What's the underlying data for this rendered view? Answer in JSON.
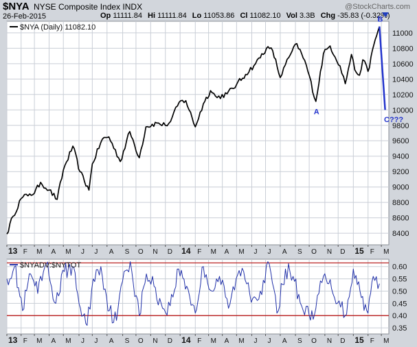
{
  "header": {
    "symbol": "$NYA",
    "name": "NYSE Composite Index",
    "exchange": "INDX",
    "watermark": "@StockCharts.com",
    "date": "26-Feb-2015",
    "op_label": "Op",
    "op": "11111.84",
    "hi_label": "Hi",
    "hi": "11111.84",
    "lo_label": "Lo",
    "lo": "11053.86",
    "cl_label": "Cl",
    "cl": "11082.10",
    "vol_label": "Vol",
    "vol": "3.3B",
    "chg_label": "Chg",
    "chg": "-35.83 (-0.32%)"
  },
  "colors": {
    "price_line": "#000000",
    "breadth_line": "#1f2fa8",
    "annotation": "#2233cc",
    "ref_line": "#b81c1c",
    "grid": "#c9ced6",
    "panel_bg": "#ffffff",
    "page_bg": "#d2d6dc"
  },
  "chart_data": [
    {
      "type": "line",
      "legend": "$NYA (Daily) 11082.10",
      "x": [
        "2013-01-02",
        "2013-01-15",
        "2013-02-01",
        "2013-02-19",
        "2013-03-01",
        "2013-03-14",
        "2013-04-01",
        "2013-04-18",
        "2013-05-01",
        "2013-05-21",
        "2013-06-05",
        "2013-06-24",
        "2013-07-01",
        "2013-07-22",
        "2013-08-05",
        "2013-08-29",
        "2013-09-18",
        "2013-10-08",
        "2013-10-22",
        "2013-11-14",
        "2013-12-02",
        "2013-12-13",
        "2013-12-31",
        "2014-01-14",
        "2014-02-03",
        "2014-02-20",
        "2014-03-07",
        "2014-03-21",
        "2014-04-11",
        "2014-05-01",
        "2014-05-20",
        "2014-06-10",
        "2014-07-03",
        "2014-07-16",
        "2014-08-01",
        "2014-08-19",
        "2014-09-05",
        "2014-09-25",
        "2014-10-15",
        "2014-10-31",
        "2014-11-14",
        "2014-12-05",
        "2014-12-16",
        "2014-12-29",
        "2015-01-05",
        "2015-01-15",
        "2015-01-22",
        "2015-02-02",
        "2015-02-17",
        "2015-02-26"
      ],
      "y": [
        8390,
        8620,
        8850,
        8910,
        8920,
        9060,
        8960,
        8840,
        9220,
        9530,
        9200,
        8960,
        9300,
        9620,
        9650,
        9330,
        9720,
        9380,
        9780,
        9830,
        9800,
        9850,
        10100,
        10120,
        9780,
        10080,
        10250,
        10160,
        10210,
        10330,
        10460,
        10600,
        10800,
        10770,
        10420,
        10680,
        10860,
        10580,
        10110,
        10730,
        10830,
        10570,
        10340,
        10720,
        10520,
        10450,
        10650,
        10500,
        10910,
        11082
      ],
      "projection": {
        "x": [
          "2015-02-26",
          "2015-03-10"
        ],
        "y": [
          11082,
          10000
        ]
      },
      "annotations": [
        {
          "text": "A",
          "x": "2014-10-15",
          "y": 9980
        },
        {
          "text": "B",
          "x": "2015-02-26",
          "y": 11180
        },
        {
          "text": "C???",
          "x": "2015-03-12",
          "y": 9880
        }
      ],
      "ylim": [
        8250,
        11150
      ],
      "yticks": [
        8400,
        8600,
        8800,
        9000,
        9200,
        9400,
        9600,
        9800,
        10000,
        10200,
        10400,
        10600,
        10800,
        11000
      ],
      "xtick_labels": [
        "13",
        "F",
        "M",
        "A",
        "M",
        "J",
        "J",
        "A",
        "S",
        "O",
        "N",
        "D",
        "14",
        "F",
        "M",
        "A",
        "M",
        "J",
        "J",
        "A",
        "S",
        "O",
        "N",
        "D",
        "15",
        "F",
        "M"
      ]
    },
    {
      "type": "line",
      "legend": "$NYADV:$NYTOT",
      "x": [
        "2013-01-02",
        "2013-01-18",
        "2013-02-04",
        "2013-02-21",
        "2013-03-08",
        "2013-03-26",
        "2013-04-15",
        "2013-05-03",
        "2013-05-20",
        "2013-06-06",
        "2013-06-20",
        "2013-07-03",
        "2013-07-19",
        "2013-08-06",
        "2013-08-21",
        "2013-09-06",
        "2013-09-19",
        "2013-10-08",
        "2013-10-23",
        "2013-11-08",
        "2013-11-26",
        "2013-12-12",
        "2013-12-30",
        "2014-01-16",
        "2014-02-03",
        "2014-02-20",
        "2014-03-10",
        "2014-03-26",
        "2014-04-14",
        "2014-04-30",
        "2014-05-16",
        "2014-06-04",
        "2014-06-20",
        "2014-07-09",
        "2014-07-25",
        "2014-08-12",
        "2014-08-28",
        "2014-09-15",
        "2014-10-01",
        "2014-10-15",
        "2014-10-31",
        "2014-11-17",
        "2014-12-03",
        "2014-12-16",
        "2015-01-02",
        "2015-01-16",
        "2015-02-02",
        "2015-02-13",
        "2015-02-26"
      ],
      "y": [
        0.55,
        0.6,
        0.42,
        0.57,
        0.49,
        0.61,
        0.45,
        0.58,
        0.6,
        0.43,
        0.36,
        0.55,
        0.6,
        0.42,
        0.38,
        0.58,
        0.62,
        0.4,
        0.57,
        0.52,
        0.43,
        0.44,
        0.59,
        0.52,
        0.41,
        0.6,
        0.5,
        0.56,
        0.43,
        0.55,
        0.58,
        0.47,
        0.5,
        0.61,
        0.41,
        0.59,
        0.56,
        0.44,
        0.4,
        0.43,
        0.56,
        0.51,
        0.46,
        0.4,
        0.59,
        0.5,
        0.41,
        0.56,
        0.53
      ],
      "hlines": [
        0.4,
        0.615
      ],
      "ylim": [
        0.325,
        0.63
      ],
      "yticks": [
        0.35,
        0.4,
        0.45,
        0.5,
        0.55,
        0.6
      ],
      "ytick_labels": [
        "0.35",
        "0.40",
        "0.45",
        "0.50",
        "0.55",
        "0.60"
      ],
      "xtick_labels": [
        "13",
        "F",
        "M",
        "A",
        "M",
        "J",
        "J",
        "A",
        "S",
        "O",
        "N",
        "D",
        "14",
        "F",
        "M",
        "A",
        "M",
        "J",
        "J",
        "A",
        "S",
        "O",
        "N",
        "D",
        "15",
        "F",
        "M"
      ]
    }
  ]
}
